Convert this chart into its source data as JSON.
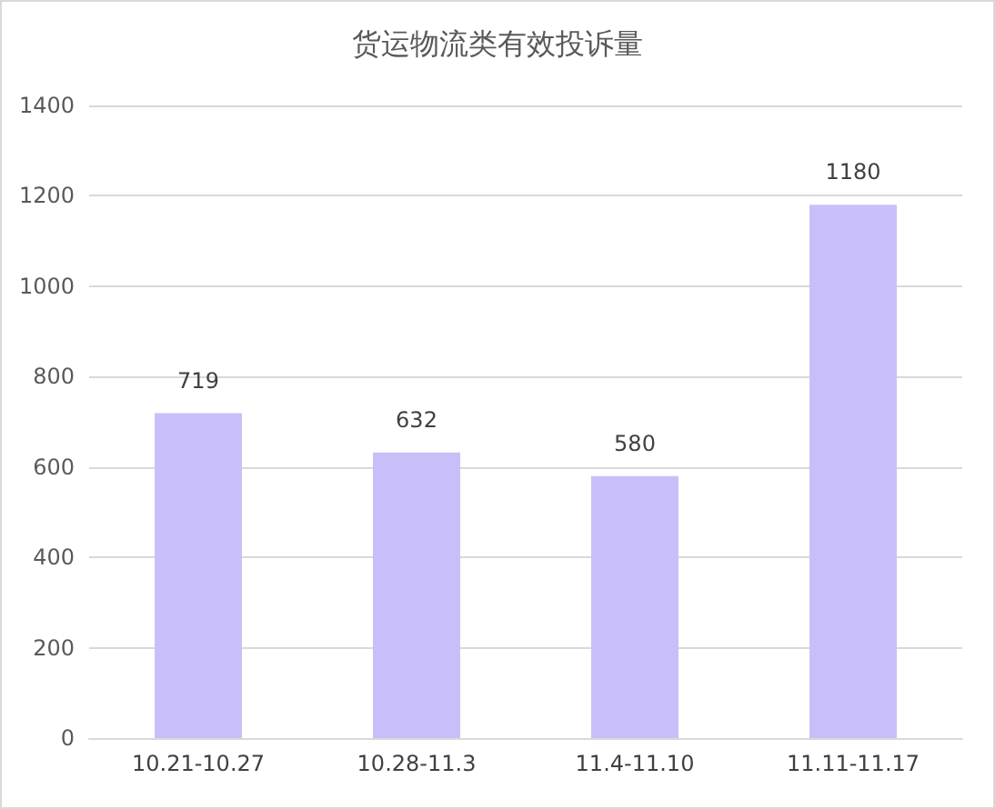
{
  "chart_data": {
    "type": "bar",
    "title": "货运物流类有效投诉量",
    "categories": [
      "10.21-10.27",
      "10.28-11.3",
      "11.4-11.10",
      "11.11-11.17"
    ],
    "values": [
      719,
      632,
      580,
      1180
    ],
    "color": "#c9bff8",
    "ylim": [
      0,
      1400
    ],
    "yticks": [
      0,
      200,
      400,
      600,
      800,
      1000,
      1200,
      1400
    ],
    "grid": "y",
    "data_labels": true
  }
}
